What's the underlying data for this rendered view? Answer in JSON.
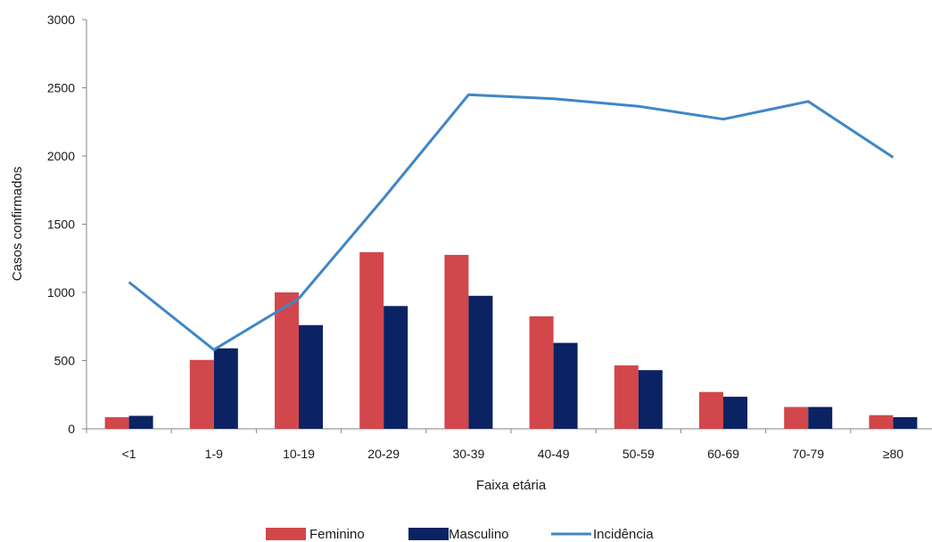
{
  "chart_data": {
    "type": "bar",
    "categories": [
      "<1",
      "1-9",
      "10-19",
      "20-29",
      "30-39",
      "40-49",
      "50-59",
      "60-69",
      "70-79",
      "≥80"
    ],
    "series": [
      {
        "name": "Feminino",
        "type": "bar",
        "color": "#d2474b",
        "values": [
          85,
          505,
          1000,
          1295,
          1275,
          825,
          465,
          270,
          160,
          100
        ]
      },
      {
        "name": "Masculino",
        "type": "bar",
        "color": "#0b2362",
        "values": [
          95,
          590,
          760,
          900,
          975,
          630,
          430,
          235,
          160,
          85
        ]
      },
      {
        "name": "Incidência",
        "type": "line",
        "color": "#3f86c6",
        "values": [
          1075,
          580,
          955,
          1690,
          2450,
          2420,
          2365,
          2270,
          2400,
          1990
        ]
      }
    ],
    "xlabel": "Faixa etária",
    "ylabel": "Casos confirmados",
    "ylim": [
      0,
      3000
    ],
    "yticks": [
      0,
      500,
      1000,
      1500,
      2000,
      2500,
      3000
    ],
    "grid": false,
    "legend_position": "bottom"
  }
}
